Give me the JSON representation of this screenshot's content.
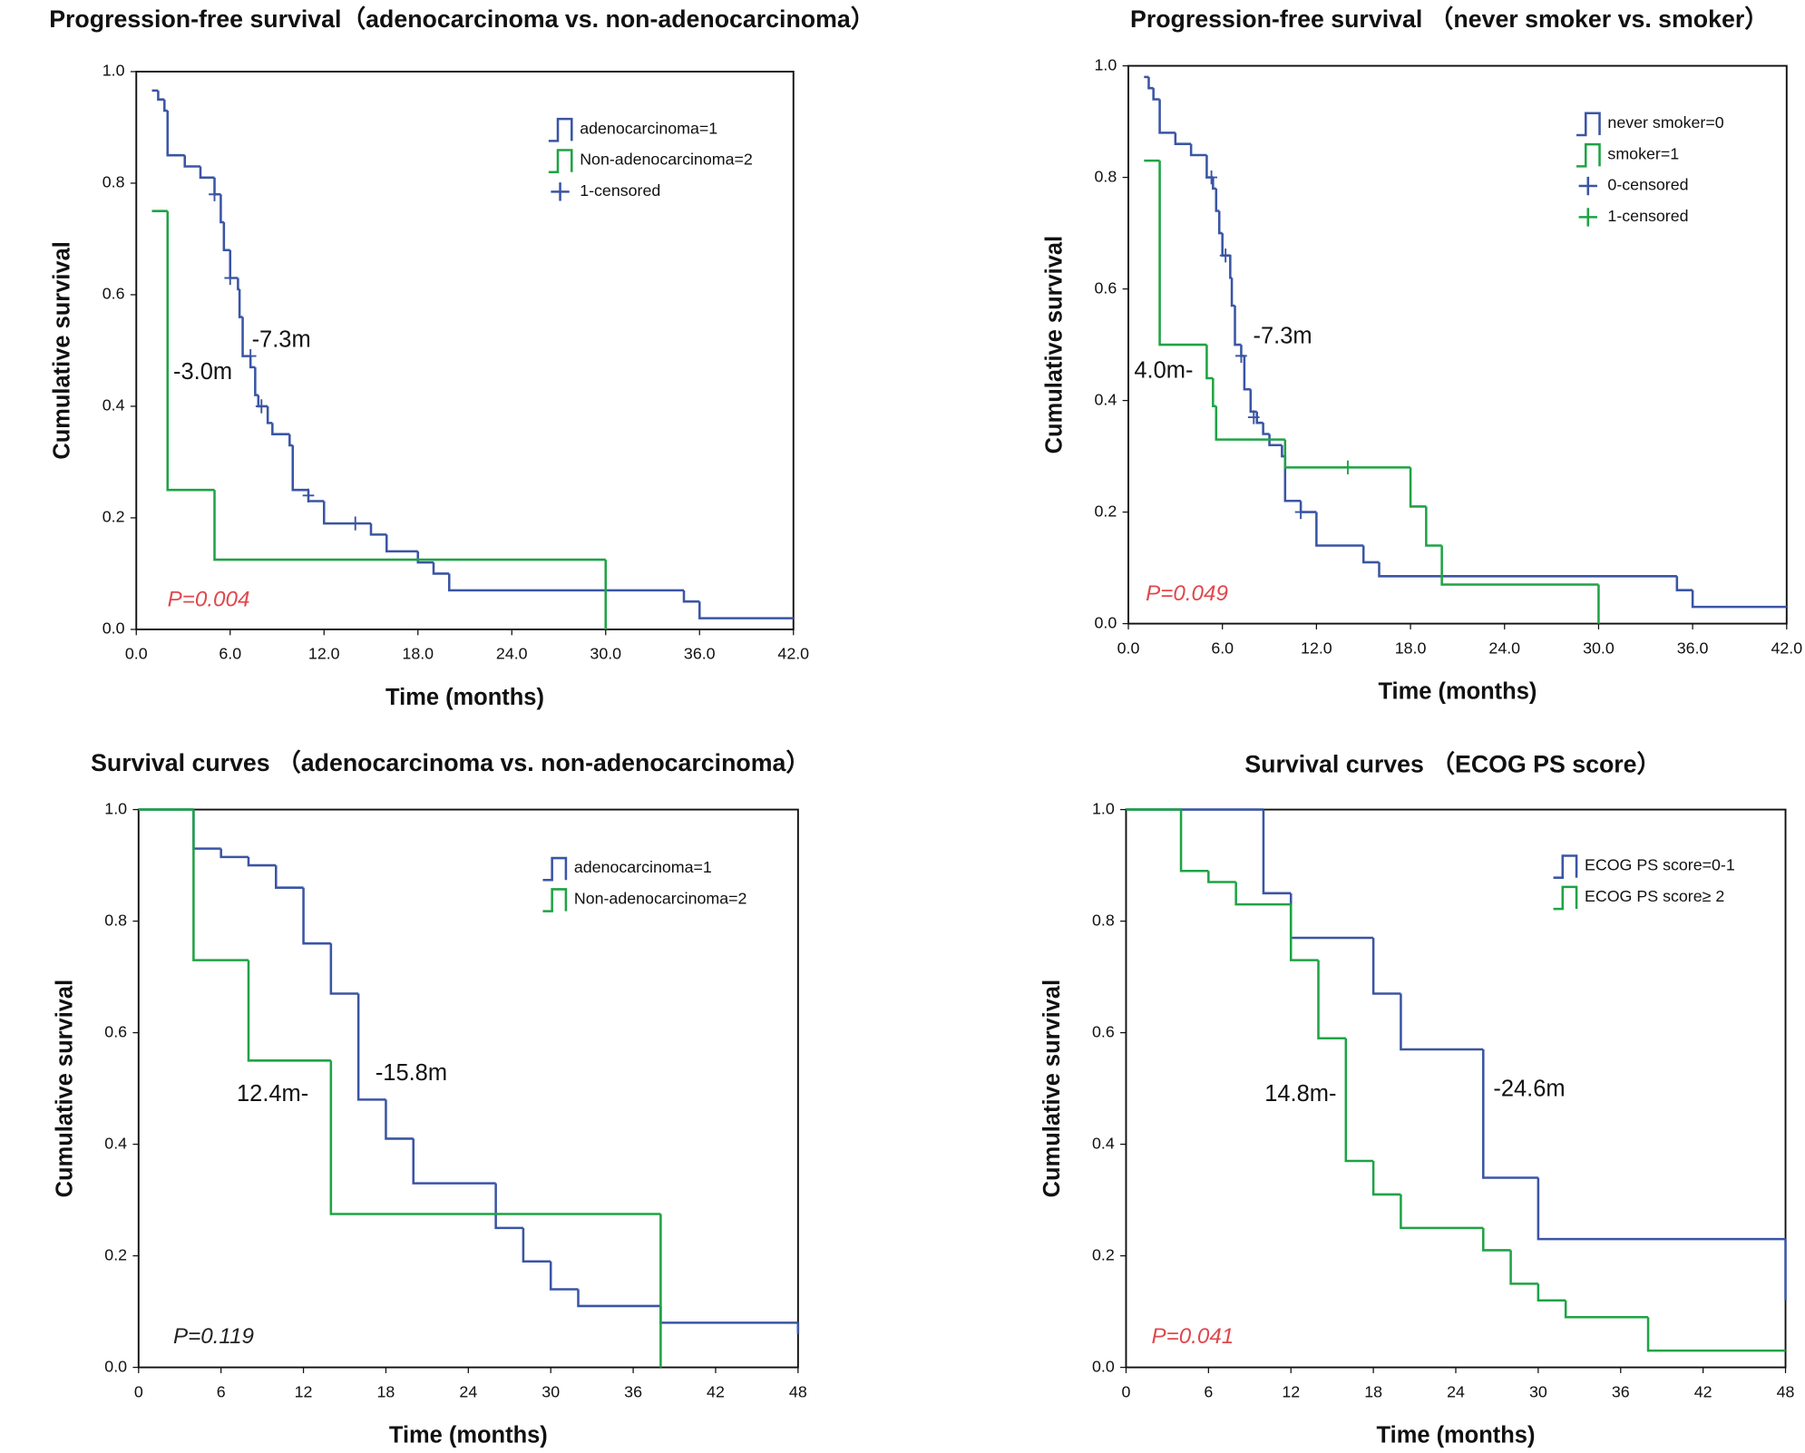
{
  "chart_data": [
    {
      "type": "step",
      "title": "Progression-free survival（adenocarcinoma vs. non-adenocarcinoma）",
      "x_label": "Time (months)",
      "y_label": "Cumulative survival",
      "xlim": [
        0,
        42
      ],
      "xticks": [
        {
          "value": 0,
          "label": "0.0"
        },
        {
          "value": 6,
          "label": "6.0"
        },
        {
          "value": 12,
          "label": "12.0"
        },
        {
          "value": 18,
          "label": "18.0"
        },
        {
          "value": 24,
          "label": "24.0"
        },
        {
          "value": 30,
          "label": "30.0"
        },
        {
          "value": 36,
          "label": "36.0"
        },
        {
          "value": 42,
          "label": "42.0"
        }
      ],
      "ylim": [
        0,
        1
      ],
      "yticks": [
        {
          "value": 0,
          "label": "0.0"
        },
        {
          "value": 0.2,
          "label": "0.2"
        },
        {
          "value": 0.4,
          "label": "0.4"
        },
        {
          "value": 0.6,
          "label": "0.6"
        },
        {
          "value": 0.8,
          "label": "0.8"
        },
        {
          "value": 1,
          "label": "1.0"
        }
      ],
      "series": [
        {
          "name": "adenocarcinoma=1",
          "color": "#3a55a4",
          "x": [
            1.0,
            1.4,
            1.8,
            2.0,
            3.1,
            4.1,
            5.0,
            5.4,
            5.6,
            6.0,
            6.5,
            6.6,
            6.8,
            7.3,
            7.6,
            7.8,
            8.4,
            8.7,
            9.8,
            10.0,
            11.0,
            12.0,
            15.0,
            16.0,
            18.0,
            19.0,
            20.0,
            35.0,
            36.0,
            42.0
          ],
          "values": [
            0.966,
            0.95,
            0.93,
            0.85,
            0.83,
            0.81,
            0.78,
            0.73,
            0.68,
            0.63,
            0.61,
            0.56,
            0.49,
            0.47,
            0.42,
            0.4,
            0.37,
            0.35,
            0.33,
            0.25,
            0.23,
            0.19,
            0.17,
            0.14,
            0.12,
            0.1,
            0.07,
            0.05,
            0.02,
            0.02
          ]
        },
        {
          "name": "Non-adenocarcinoma=2",
          "color": "#1fa345",
          "x": [
            1.0,
            2.0,
            5.0,
            30.0
          ],
          "values": [
            0.75,
            0.25,
            0.125,
            0.0
          ]
        },
        {
          "name": "1-censored",
          "color": "#3a55a4",
          "marker": "plus",
          "x": [
            5.0,
            6.0,
            7.3,
            8.0,
            11.0,
            14.0
          ],
          "values": [
            0.78,
            0.63,
            0.49,
            0.4,
            0.24,
            0.19
          ]
        }
      ],
      "annotations": [
        "-7.3m",
        "-3.0m"
      ],
      "p_value": "P=0.004",
      "p_color": "#e0474c"
    },
    {
      "type": "step",
      "title": "Progression-free survival （never smoker vs. smoker）",
      "x_label": "Time (months)",
      "y_label": "Cumulative survival",
      "xlim": [
        0,
        42
      ],
      "xticks": [
        {
          "value": 0,
          "label": "0.0"
        },
        {
          "value": 6,
          "label": "6.0"
        },
        {
          "value": 12,
          "label": "12.0"
        },
        {
          "value": 18,
          "label": "18.0"
        },
        {
          "value": 24,
          "label": "24.0"
        },
        {
          "value": 30,
          "label": "30.0"
        },
        {
          "value": 36,
          "label": "36.0"
        },
        {
          "value": 42,
          "label": "42.0"
        }
      ],
      "ylim": [
        0,
        1
      ],
      "yticks": [
        {
          "value": 0,
          "label": "0.0"
        },
        {
          "value": 0.2,
          "label": "0.2"
        },
        {
          "value": 0.4,
          "label": "0.4"
        },
        {
          "value": 0.6,
          "label": "0.6"
        },
        {
          "value": 0.8,
          "label": "0.8"
        },
        {
          "value": 1,
          "label": "1.0"
        }
      ],
      "series": [
        {
          "name": "never smoker=0",
          "color": "#3a55a4",
          "x": [
            1.0,
            1.3,
            1.6,
            2.0,
            3.0,
            4.0,
            5.0,
            5.4,
            5.6,
            5.8,
            6.0,
            6.5,
            6.6,
            6.8,
            7.2,
            7.4,
            7.8,
            8.2,
            8.6,
            9.0,
            9.8,
            10.0,
            11.0,
            12.0,
            15.0,
            16.0,
            35.0,
            36.0,
            42.0
          ],
          "values": [
            0.98,
            0.96,
            0.94,
            0.88,
            0.86,
            0.84,
            0.8,
            0.78,
            0.74,
            0.7,
            0.66,
            0.62,
            0.57,
            0.5,
            0.48,
            0.42,
            0.38,
            0.36,
            0.34,
            0.32,
            0.3,
            0.22,
            0.2,
            0.14,
            0.11,
            0.085,
            0.06,
            0.03,
            0.03
          ]
        },
        {
          "name": "smoker=1",
          "color": "#1fa345",
          "x": [
            1.0,
            2.0,
            5.0,
            5.4,
            5.6,
            10.0,
            18.0,
            19.0,
            20.0,
            30.0
          ],
          "values": [
            0.83,
            0.5,
            0.44,
            0.39,
            0.33,
            0.28,
            0.21,
            0.14,
            0.07,
            0.0
          ]
        },
        {
          "name": "0-censored",
          "color": "#3a55a4",
          "marker": "plus",
          "x": [
            5.3,
            6.2,
            7.2,
            8.0,
            11.0
          ],
          "values": [
            0.8,
            0.66,
            0.48,
            0.37,
            0.2
          ]
        },
        {
          "name": "1-censored",
          "color": "#1fa345",
          "marker": "plus",
          "x": [
            14.0
          ],
          "values": [
            0.28
          ]
        }
      ],
      "annotations": [
        "-7.3m",
        "4.0m-"
      ],
      "p_value": "P=0.049",
      "p_color": "#e0474c"
    },
    {
      "type": "step",
      "title": "Survival curves （adenocarcinoma vs. non-adenocarcinoma）",
      "x_label": "Time (months)",
      "y_label": "Cumulative survival",
      "xlim": [
        0,
        48
      ],
      "xticks": [
        0,
        6,
        12,
        18,
        24,
        30,
        36,
        42,
        48
      ],
      "ylim": [
        0,
        1
      ],
      "yticks": [
        {
          "value": 0,
          "label": "0.0"
        },
        {
          "value": 0.2,
          "label": "0.2"
        },
        {
          "value": 0.4,
          "label": "0.4"
        },
        {
          "value": 0.6,
          "label": "0.6"
        },
        {
          "value": 0.8,
          "label": "0.8"
        },
        {
          "value": 1,
          "label": "1.0"
        }
      ],
      "series": [
        {
          "name": "adenocarcinoma=1",
          "color": "#3a55a4",
          "x": [
            0,
            4,
            6,
            8,
            10,
            12,
            14,
            16,
            18,
            20,
            26,
            28,
            30,
            32,
            38,
            48
          ],
          "values": [
            1.0,
            0.93,
            0.915,
            0.9,
            0.86,
            0.76,
            0.67,
            0.48,
            0.41,
            0.33,
            0.25,
            0.19,
            0.14,
            0.11,
            0.08,
            0.06
          ]
        },
        {
          "name": "Non-adenocarcinoma=2",
          "color": "#1fa345",
          "x": [
            0,
            4,
            8,
            14,
            38
          ],
          "values": [
            1.0,
            0.73,
            0.55,
            0.275,
            0.0
          ]
        }
      ],
      "annotations": [
        "-15.8m",
        "12.4m-"
      ],
      "p_value": "P=0.119",
      "p_color": "#222222"
    },
    {
      "type": "step",
      "title": "Survival curves （ECOG PS score）",
      "x_label": "Time (months)",
      "y_label": "Cumulative survival",
      "xlim": [
        0,
        48
      ],
      "xticks": [
        0,
        6,
        12,
        18,
        24,
        30,
        36,
        42,
        48
      ],
      "ylim": [
        0,
        1
      ],
      "yticks": [
        {
          "value": 0,
          "label": "0.0"
        },
        {
          "value": 0.2,
          "label": "0.2"
        },
        {
          "value": 0.4,
          "label": "0.4"
        },
        {
          "value": 0.6,
          "label": "0.6"
        },
        {
          "value": 0.8,
          "label": "0.8"
        },
        {
          "value": 1,
          "label": "1.0"
        }
      ],
      "series": [
        {
          "name": "ECOG PS score=0-1",
          "color": "#3a55a4",
          "x": [
            0,
            10,
            12,
            18,
            20,
            26,
            30,
            48
          ],
          "values": [
            1.0,
            0.85,
            0.77,
            0.67,
            0.57,
            0.34,
            0.23,
            0.12
          ]
        },
        {
          "name": "ECOG PS score≥ 2",
          "color": "#1fa345",
          "x": [
            0,
            4,
            6,
            8,
            12,
            14,
            16,
            18,
            20,
            26,
            28,
            30,
            32,
            38,
            48
          ],
          "values": [
            1.0,
            0.89,
            0.87,
            0.83,
            0.73,
            0.59,
            0.37,
            0.31,
            0.25,
            0.21,
            0.15,
            0.12,
            0.09,
            0.03,
            0.03
          ]
        }
      ],
      "annotations": [
        "-24.6m",
        "14.8m-"
      ],
      "p_value": "P=0.041",
      "p_color": "#e0474c"
    }
  ]
}
